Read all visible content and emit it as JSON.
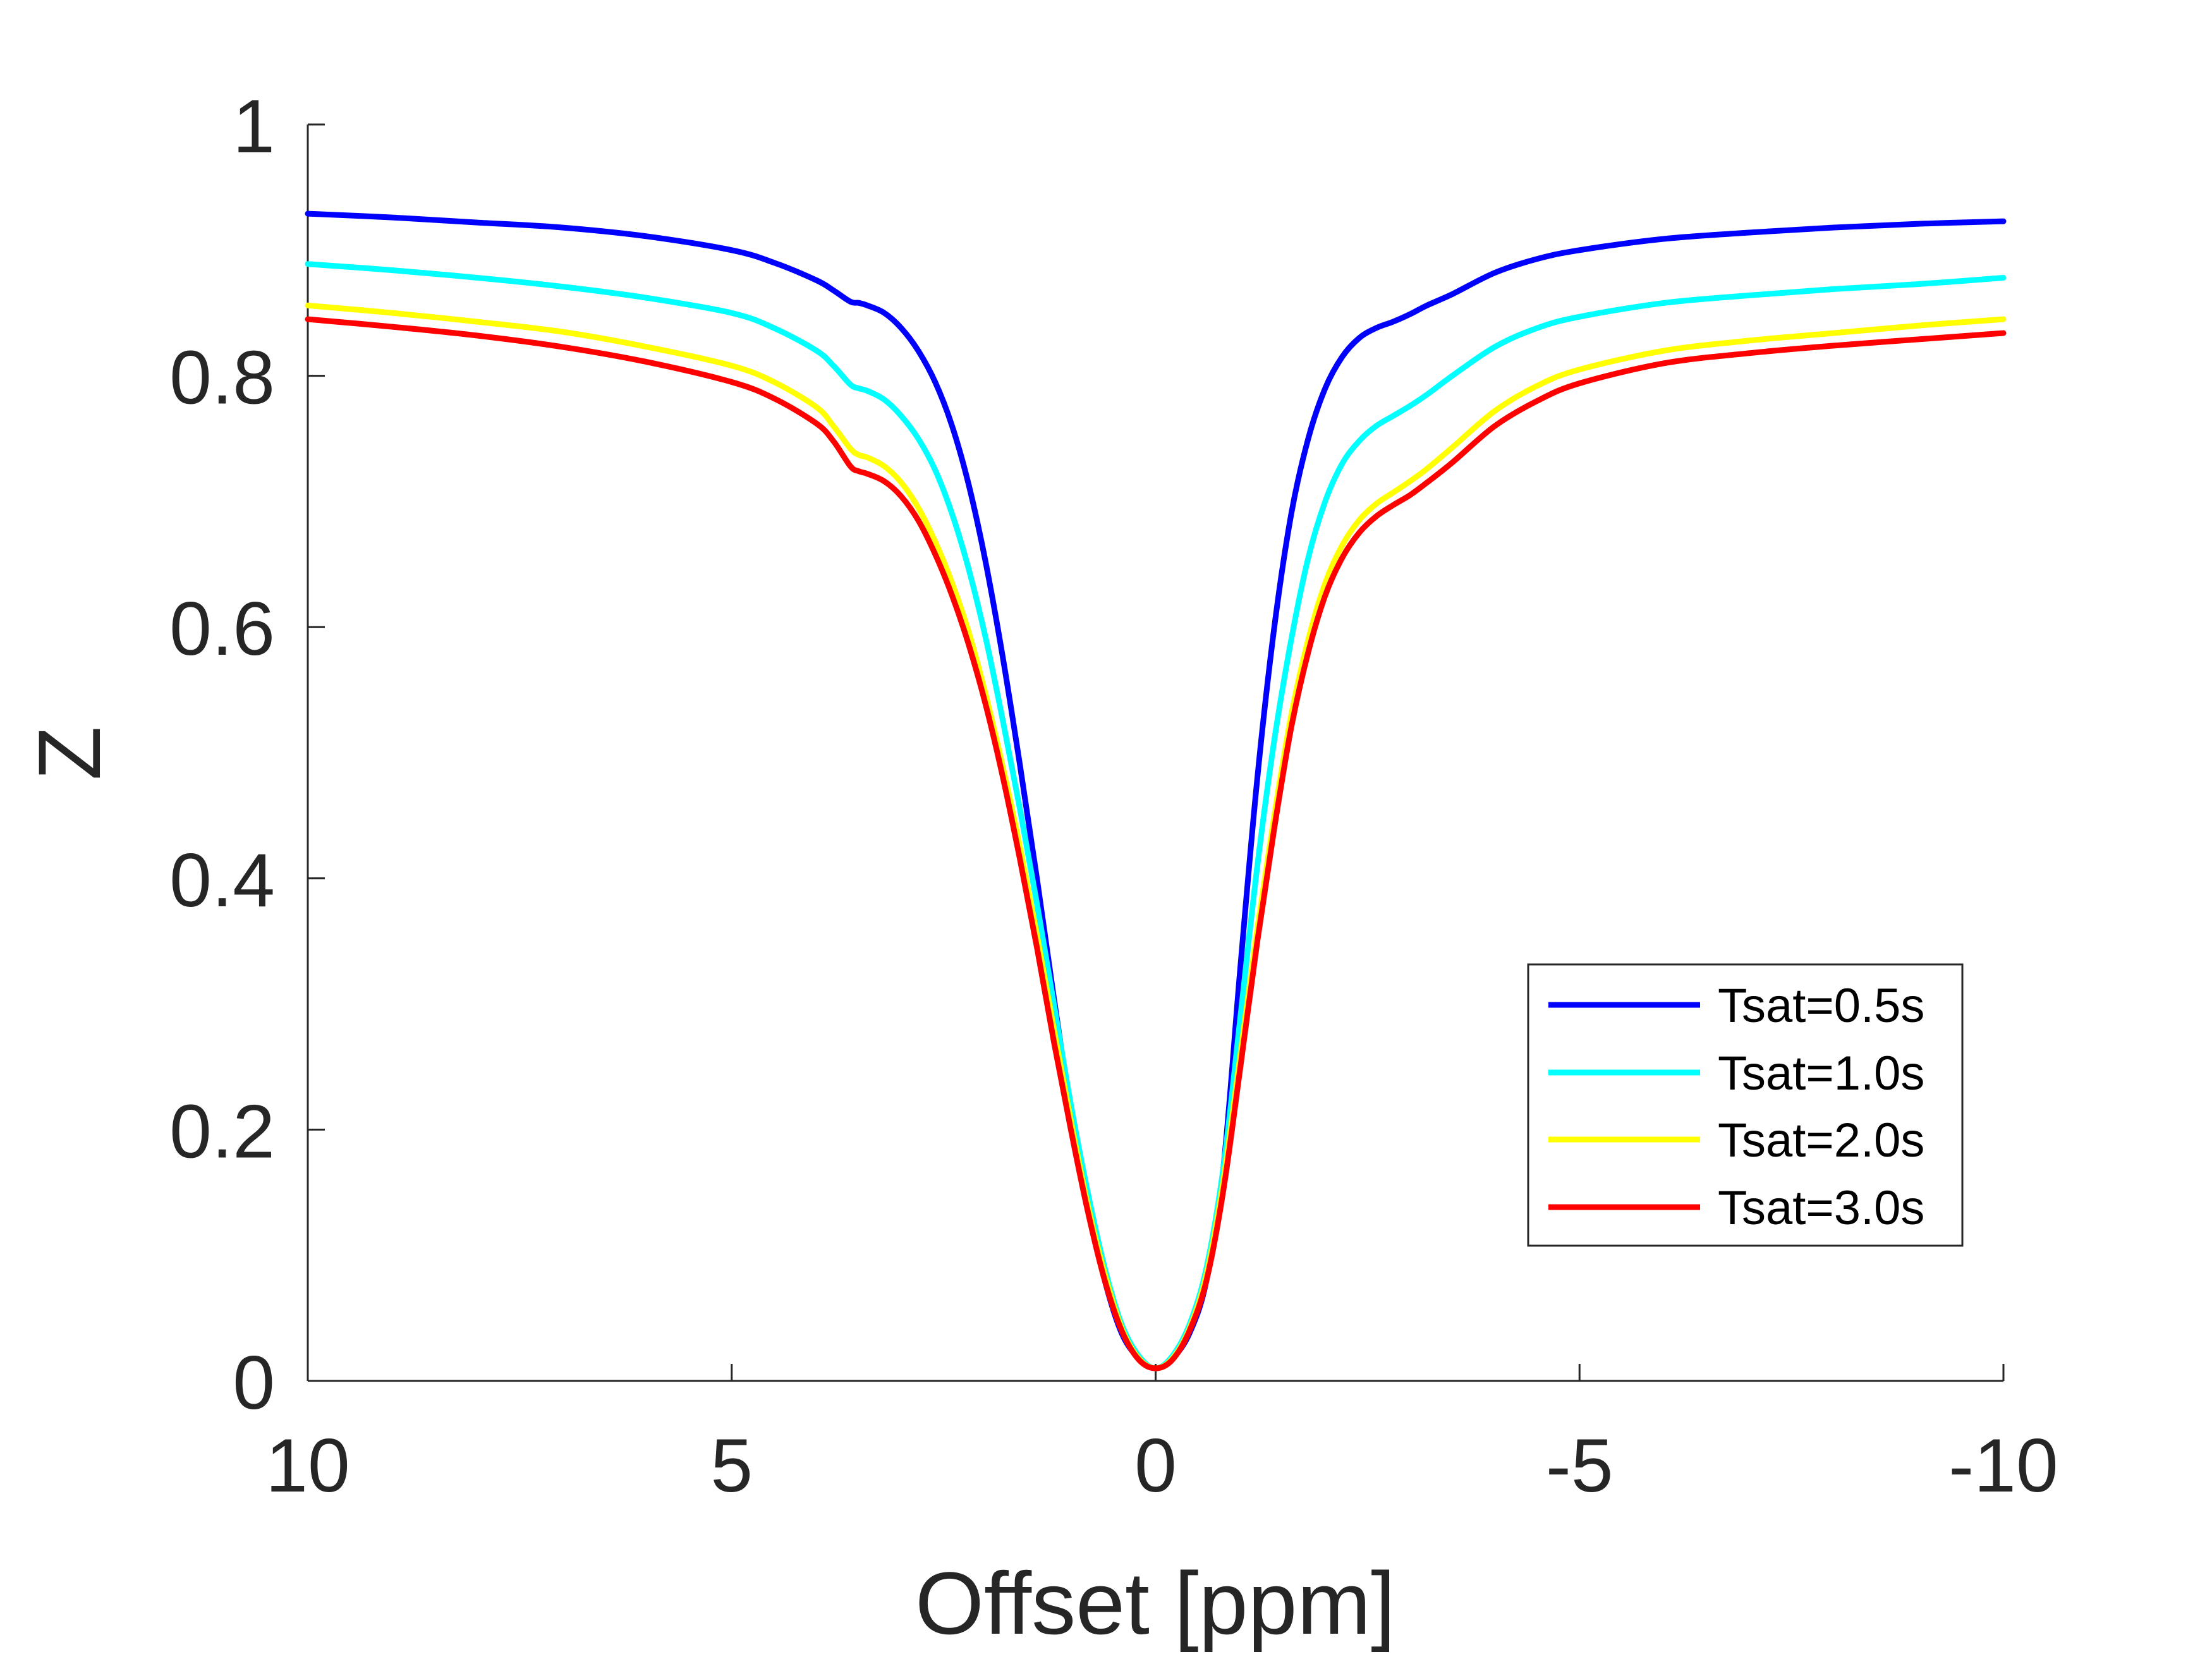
{
  "chart_data": {
    "type": "line",
    "xlabel": "Offset [ppm]",
    "ylabel": "Z",
    "xlim": [
      10,
      -10
    ],
    "ylim": [
      0,
      1
    ],
    "x_reversed": true,
    "xticks": [
      10,
      5,
      0,
      -5,
      -10
    ],
    "xtick_labels": [
      "10",
      "5",
      "0",
      "-5",
      "-10"
    ],
    "yticks": [
      0,
      0.2,
      0.4,
      0.6,
      0.8,
      1
    ],
    "ytick_labels": [
      "0",
      "0.2",
      "0.4",
      "0.6",
      "0.8",
      "1"
    ],
    "grid": false,
    "legend_position": "bottom-right",
    "x": [
      10,
      9,
      8,
      7,
      6,
      5,
      4.5,
      4,
      3.8,
      3.6,
      3.5,
      3.4,
      3.2,
      3,
      2.8,
      2.6,
      2.4,
      2.2,
      2,
      1.8,
      1.6,
      1.4,
      1.2,
      1,
      0.8,
      0.6,
      0.4,
      0.2,
      0,
      -0.2,
      -0.4,
      -0.6,
      -0.8,
      -1,
      -1.2,
      -1.4,
      -1.6,
      -1.8,
      -2,
      -2.2,
      -2.4,
      -2.6,
      -2.8,
      -3,
      -3.2,
      -3.5,
      -4,
      -4.5,
      -5,
      -6,
      -7,
      -8,
      -9,
      -10
    ],
    "series": [
      {
        "name": "Tsat=0.5s",
        "color": "#0000ff",
        "values": [
          0.929,
          0.926,
          0.922,
          0.918,
          0.911,
          0.9,
          0.89,
          0.876,
          0.868,
          0.859,
          0.858,
          0.856,
          0.85,
          0.838,
          0.82,
          0.795,
          0.76,
          0.712,
          0.65,
          0.575,
          0.49,
          0.4,
          0.305,
          0.215,
          0.14,
          0.08,
          0.038,
          0.018,
          0.01,
          0.018,
          0.038,
          0.08,
          0.17,
          0.33,
          0.48,
          0.6,
          0.69,
          0.75,
          0.79,
          0.815,
          0.83,
          0.838,
          0.843,
          0.849,
          0.856,
          0.865,
          0.882,
          0.893,
          0.9,
          0.909,
          0.914,
          0.918,
          0.921,
          0.923
        ]
      },
      {
        "name": "Tsat=1.0s",
        "color": "#00ffff",
        "values": [
          0.889,
          0.884,
          0.878,
          0.871,
          0.862,
          0.85,
          0.838,
          0.82,
          0.808,
          0.793,
          0.79,
          0.788,
          0.781,
          0.768,
          0.75,
          0.725,
          0.69,
          0.645,
          0.59,
          0.525,
          0.455,
          0.38,
          0.3,
          0.22,
          0.15,
          0.09,
          0.045,
          0.02,
          0.01,
          0.02,
          0.045,
          0.09,
          0.17,
          0.29,
          0.41,
          0.51,
          0.59,
          0.655,
          0.7,
          0.73,
          0.748,
          0.76,
          0.768,
          0.776,
          0.785,
          0.8,
          0.823,
          0.838,
          0.847,
          0.858,
          0.864,
          0.869,
          0.873,
          0.878
        ]
      },
      {
        "name": "Tsat=2.0s",
        "color": "#ffff00",
        "values": [
          0.856,
          0.85,
          0.843,
          0.835,
          0.823,
          0.808,
          0.795,
          0.775,
          0.76,
          0.742,
          0.737,
          0.735,
          0.728,
          0.715,
          0.695,
          0.668,
          0.635,
          0.595,
          0.545,
          0.488,
          0.425,
          0.355,
          0.28,
          0.207,
          0.14,
          0.085,
          0.042,
          0.018,
          0.01,
          0.018,
          0.042,
          0.085,
          0.16,
          0.26,
          0.36,
          0.45,
          0.53,
          0.59,
          0.635,
          0.665,
          0.685,
          0.698,
          0.707,
          0.716,
          0.726,
          0.743,
          0.772,
          0.792,
          0.805,
          0.82,
          0.828,
          0.834,
          0.84,
          0.845
        ]
      },
      {
        "name": "Tsat=3.0s",
        "color": "#ff0000",
        "values": [
          0.845,
          0.839,
          0.832,
          0.823,
          0.811,
          0.795,
          0.782,
          0.762,
          0.748,
          0.728,
          0.724,
          0.722,
          0.716,
          0.704,
          0.685,
          0.658,
          0.625,
          0.585,
          0.537,
          0.48,
          0.415,
          0.345,
          0.27,
          0.2,
          0.135,
          0.08,
          0.04,
          0.017,
          0.01,
          0.017,
          0.04,
          0.08,
          0.152,
          0.25,
          0.35,
          0.44,
          0.52,
          0.58,
          0.625,
          0.655,
          0.675,
          0.688,
          0.697,
          0.705,
          0.715,
          0.731,
          0.76,
          0.78,
          0.794,
          0.81,
          0.818,
          0.824,
          0.829,
          0.834
        ]
      }
    ]
  }
}
